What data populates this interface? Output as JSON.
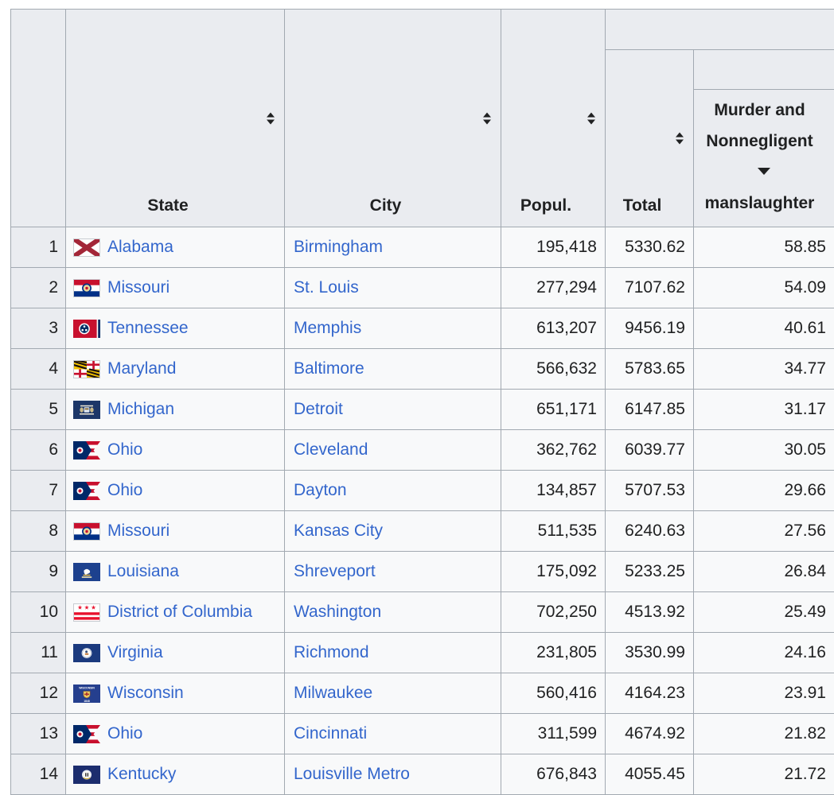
{
  "colors": {
    "link_blue": "#3366cc",
    "header_background": "#eaecf0",
    "cell_background": "#f8f9fa",
    "border": "#a2a9b1",
    "text": "#202122",
    "page_background": "#ffffff"
  },
  "table": {
    "sort_state": {
      "sorted_column": "murder",
      "direction": "descending"
    },
    "column_headers": {
      "rank": "",
      "state": "State",
      "city": "City",
      "population": "Popul.",
      "total": "Total",
      "murder_line1": "Murder and",
      "murder_line2": "Nonnegligent",
      "murder_line3": "manslaughter"
    },
    "rows": [
      {
        "rank": "1",
        "flag": "alabama",
        "state": "Alabama",
        "city": "Birmingham",
        "population": "195,418",
        "total": "5330.62",
        "murder": "58.85"
      },
      {
        "rank": "2",
        "flag": "missouri",
        "state": "Missouri",
        "city": "St. Louis",
        "population": "277,294",
        "total": "7107.62",
        "murder": "54.09"
      },
      {
        "rank": "3",
        "flag": "tennessee",
        "state": "Tennessee",
        "city": "Memphis",
        "population": "613,207",
        "total": "9456.19",
        "murder": "40.61"
      },
      {
        "rank": "4",
        "flag": "maryland",
        "state": "Maryland",
        "city": "Baltimore",
        "population": "566,632",
        "total": "5783.65",
        "murder": "34.77"
      },
      {
        "rank": "5",
        "flag": "michigan",
        "state": "Michigan",
        "city": "Detroit",
        "population": "651,171",
        "total": "6147.85",
        "murder": "31.17"
      },
      {
        "rank": "6",
        "flag": "ohio",
        "state": "Ohio",
        "city": "Cleveland",
        "population": "362,762",
        "total": "6039.77",
        "murder": "30.05"
      },
      {
        "rank": "7",
        "flag": "ohio",
        "state": "Ohio",
        "city": "Dayton",
        "population": "134,857",
        "total": "5707.53",
        "murder": "29.66"
      },
      {
        "rank": "8",
        "flag": "missouri",
        "state": "Missouri",
        "city": "Kansas City",
        "population": "511,535",
        "total": "6240.63",
        "murder": "27.56"
      },
      {
        "rank": "9",
        "flag": "louisiana",
        "state": "Louisiana",
        "city": "Shreveport",
        "population": "175,092",
        "total": "5233.25",
        "murder": "26.84"
      },
      {
        "rank": "10",
        "flag": "dc",
        "state": "District of Columbia",
        "city": "Washington",
        "population": "702,250",
        "total": "4513.92",
        "murder": "25.49"
      },
      {
        "rank": "11",
        "flag": "virginia",
        "state": "Virginia",
        "city": "Richmond",
        "population": "231,805",
        "total": "3530.99",
        "murder": "24.16"
      },
      {
        "rank": "12",
        "flag": "wisconsin",
        "state": "Wisconsin",
        "city": "Milwaukee",
        "population": "560,416",
        "total": "4164.23",
        "murder": "23.91"
      },
      {
        "rank": "13",
        "flag": "ohio",
        "state": "Ohio",
        "city": "Cincinnati",
        "population": "311,599",
        "total": "4674.92",
        "murder": "21.82"
      },
      {
        "rank": "14",
        "flag": "kentucky",
        "state": "Kentucky",
        "city": "Louisville Metro",
        "population": "676,843",
        "total": "4055.45",
        "murder": "21.72"
      }
    ]
  }
}
